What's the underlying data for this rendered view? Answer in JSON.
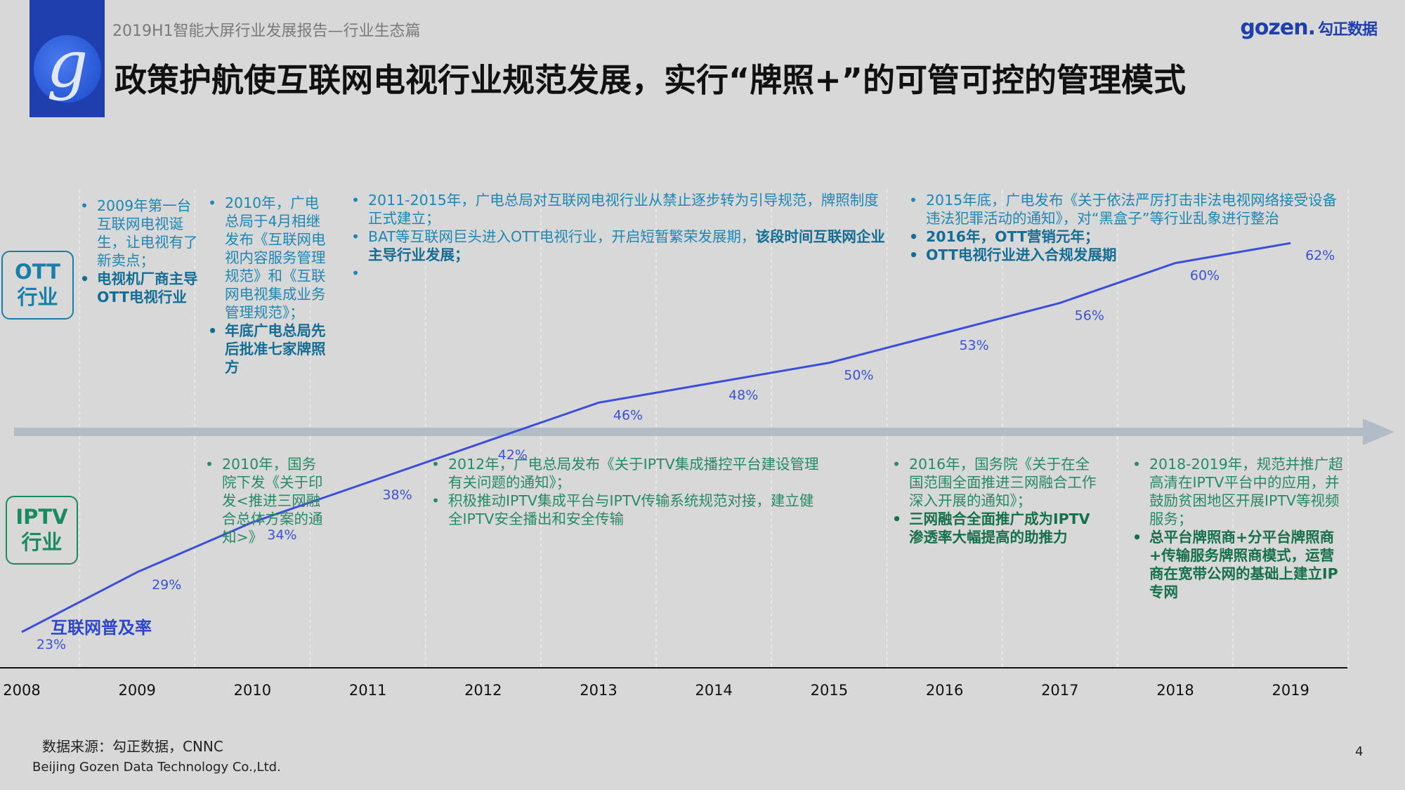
{
  "header": {
    "subtitle": "2019H1智能大屏行业发展报告—行业生态篇",
    "title": "政策护航使互联网电视行业规范发展，实行“牌照+”的可管可控的管理模式",
    "brand_en": "gozen.",
    "brand_cn": "勾正数据"
  },
  "tags": {
    "ott": [
      "OTT",
      "行业"
    ],
    "iptv": [
      "IPTV",
      "行业"
    ]
  },
  "chart_data": {
    "type": "line",
    "categories": [
      "2008",
      "2009",
      "2010",
      "2011",
      "2012",
      "2013",
      "2014",
      "2015",
      "2016",
      "2017",
      "2018",
      "2019"
    ],
    "series": [
      {
        "name": "互联网普及率",
        "values": [
          23,
          29,
          34,
          38,
          42,
          46,
          48,
          50,
          53,
          56,
          60,
          62
        ],
        "labels": [
          "23%",
          "29%",
          "34%",
          "38%",
          "42%",
          "46%",
          "48%",
          "50%",
          "53%",
          "56%",
          "60%",
          "62%"
        ]
      }
    ],
    "legend_label": "互联网普及率",
    "color": "#3b4ee0"
  },
  "ott_notes": [
    [
      {
        "t": "2009年第一台互联网电视诞生，让电视有了新卖点；",
        "b": false
      },
      {
        "t": "电视机厂商主导OTT电视行业",
        "b": true
      }
    ],
    [
      {
        "t": "2010年，广电总局于4月相继发布《互联网电视内容服务管理规范》和《互联网电视集成业务管理规范》；",
        "b": false
      },
      {
        "t": "年底广电总局先后批准七家牌照方",
        "b": true
      }
    ],
    [
      {
        "t": "2011-2015年，广电总局对互联网电视行业从禁止逐步转为引导规范，牌照制度正式建立；",
        "b": false
      },
      {
        "t": "BAT等互联网巨头进入OTT电视行业，开启短暂繁荣发展期，",
        "b": false,
        "bt": "该段时间互联网企业主导行业发展；"
      },
      {
        "t": "",
        "b": false
      }
    ],
    [
      {
        "t": "2015年底，广电发布《关于依法严厉打击非法电视网络接受设备违法犯罪活动的通知》，对“黑盒子”等行业乱象进行整治",
        "b": false
      },
      {
        "t": "2016年，OTT营销元年；",
        "b": true
      },
      {
        "t": "OTT电视行业进入合规发展期",
        "b": true
      }
    ]
  ],
  "iptv_notes": [
    [
      {
        "t": "2010年，国务院下发《关于印发<推进三网融合总体方案的通知>》",
        "b": false
      }
    ],
    [
      {
        "t": "2012年，广电总局发布《关于IPTV集成播控平台建设管理有关问题的通知》；",
        "b": false
      },
      {
        "t": "积极推动IPTV集成平台与IPTV传输系统规范对接，建立健全IPTV安全播出和安全传输",
        "b": false
      }
    ],
    [
      {
        "t": "2016年，国务院《关于在全国范围全面推进三网融合工作深入开展的通知》；",
        "b": false
      },
      {
        "t": "三网融合全面推广成为IPTV渗透率大幅提高的助推力",
        "b": true
      }
    ],
    [
      {
        "t": "2018-2019年，规范并推广超高清在IPTV平台中的应用，并鼓励贫困地区开展IPTV等视频服务；",
        "b": false
      },
      {
        "t": "总平台牌照商+分平台牌照商+传输服务牌照商模式，运营商在宽带公网的基础上建立IP专网",
        "b": true
      }
    ]
  ],
  "footer": {
    "source": "数据来源：勾正数据，CNNC",
    "company": "Beijing Gozen Data Technology Co.,Ltd.",
    "page": "4"
  }
}
